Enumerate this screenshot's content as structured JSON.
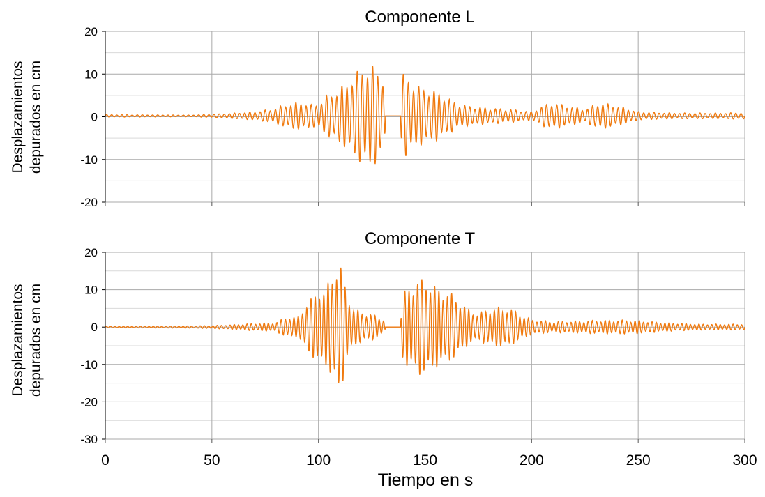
{
  "colors": {
    "series": "#F07A0F",
    "grid": "#c8c8c8",
    "axis": "#000000"
  },
  "xlabel": "Tiempo en s",
  "chart_data": [
    {
      "type": "line",
      "title": "Componente L",
      "ylabel": [
        "Desplazamientos",
        "depurados en cm"
      ],
      "xlim": [
        0,
        300
      ],
      "ylim": [
        -20,
        20
      ],
      "yticks": [
        20,
        10,
        0,
        -10,
        -20
      ],
      "ytick_labels": [
        "20",
        "10",
        "0",
        "-10",
        "-20"
      ],
      "xticks": [
        0,
        50,
        100,
        150,
        200,
        250,
        300
      ],
      "grid": true,
      "series": [
        {
          "envelope_t": [
            0,
            40,
            55,
            70,
            78,
            85,
            92,
            97,
            100,
            104,
            108,
            112,
            116,
            120,
            124,
            128,
            131,
            131.5,
            138.5,
            139,
            142,
            146,
            150,
            155,
            160,
            165,
            170,
            180,
            190,
            200,
            205,
            210,
            215,
            225,
            232,
            240,
            245,
            250,
            260,
            270,
            280,
            290,
            300
          ],
          "envelope_amp": [
            0.3,
            0.2,
            0.5,
            1.0,
            1.6,
            2.8,
            3.4,
            2.6,
            3.0,
            4.8,
            5.8,
            7.5,
            9.5,
            11.5,
            12.5,
            11.0,
            9.0,
            0,
            0,
            10.5,
            9.0,
            7.5,
            6.5,
            6.0,
            4.5,
            3.0,
            2.4,
            1.9,
            1.6,
            1.0,
            2.4,
            3.2,
            2.6,
            1.6,
            3.2,
            2.4,
            1.8,
            1.0,
            0.8,
            0.7,
            0.7,
            0.7,
            0.8
          ],
          "period_s": 2.4,
          "offset_cm": 0.2
        }
      ]
    },
    {
      "type": "line",
      "title": "Componente T",
      "ylabel": [
        "Desplazamientos",
        "depurados en cm"
      ],
      "xlim": [
        0,
        300
      ],
      "ylim": [
        -30,
        20
      ],
      "yticks": [
        20,
        10,
        0,
        -10,
        -20,
        -30
      ],
      "ytick_labels": [
        "20",
        "10",
        "0",
        "-10",
        "-20",
        "-30"
      ],
      "xticks": [
        0,
        50,
        100,
        150,
        200,
        250,
        300
      ],
      "xtick_labels": [
        "0",
        "50",
        "100",
        "150",
        "200",
        "250",
        "300"
      ],
      "grid": true,
      "series": [
        {
          "envelope_t": [
            0,
            40,
            55,
            70,
            80,
            85,
            90,
            94,
            97,
            100,
            103,
            106,
            109,
            111,
            113,
            116,
            120,
            125,
            131,
            131.5,
            138.5,
            139,
            142,
            146,
            150,
            155,
            160,
            165,
            170,
            175,
            180,
            185,
            190,
            195,
            200,
            210,
            220,
            230,
            240,
            250,
            260,
            270,
            280,
            290,
            300
          ],
          "envelope_amp": [
            0.2,
            0.3,
            0.5,
            1.0,
            1.2,
            2.8,
            2.6,
            6.0,
            8.0,
            11.0,
            9.5,
            14.5,
            18.0,
            16.0,
            10.0,
            5.5,
            4.0,
            3.5,
            2.0,
            0,
            0,
            8.0,
            11.5,
            12.5,
            13.5,
            11.0,
            10.0,
            8.0,
            5.0,
            3.5,
            5.0,
            5.5,
            5.0,
            3.5,
            2.0,
            1.5,
            1.6,
            1.8,
            1.9,
            1.8,
            1.3,
            1.0,
            0.8,
            0.8,
            0.8
          ],
          "period_s": 2.0,
          "offset_cm": 0.0
        }
      ]
    }
  ]
}
